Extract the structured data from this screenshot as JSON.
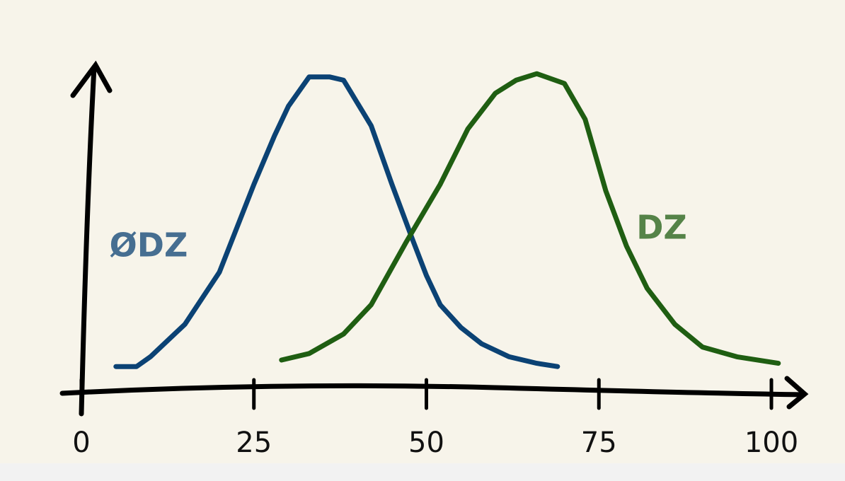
{
  "chart_data": {
    "type": "line",
    "series": [
      {
        "name": "ØDZ",
        "color": "#0b4274",
        "x": [
          5,
          8,
          10,
          15,
          20,
          25,
          28,
          30,
          33,
          36,
          38,
          42,
          45,
          48,
          50,
          52,
          55,
          58,
          62,
          66,
          69
        ],
        "values": [
          8,
          8,
          11,
          21,
          37,
          64,
          79,
          88,
          97,
          97,
          96,
          82,
          64,
          47,
          36,
          27,
          20,
          15,
          11,
          9,
          8
        ]
      },
      {
        "name": "DZ",
        "color": "#1f5e12",
        "x": [
          29,
          33,
          38,
          42,
          47,
          52,
          56,
          60,
          63,
          66,
          70,
          73,
          76,
          79,
          82,
          86,
          90,
          95,
          101
        ],
        "values": [
          10,
          12,
          18,
          27,
          46,
          64,
          81,
          92,
          96,
          98,
          95,
          84,
          62,
          45,
          32,
          21,
          14,
          11,
          9
        ]
      }
    ],
    "xlim": [
      0,
      105
    ],
    "xticks": [
      0,
      25,
      50,
      75,
      100
    ],
    "ylim": [
      0,
      100
    ]
  }
}
